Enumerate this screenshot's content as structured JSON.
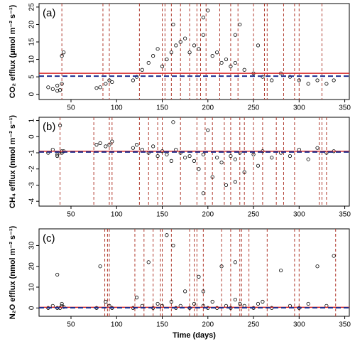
{
  "chart_data": [
    {
      "type": "scatter",
      "panel_label": "(a)",
      "y_label": "CO₂ efflux (μmol m⁻² s⁻¹)",
      "xlim": [
        15,
        355
      ],
      "xticks": [
        50,
        100,
        150,
        200,
        250,
        300,
        350
      ],
      "ylim": [
        -1.5,
        26
      ],
      "yticks": [
        0,
        5,
        10,
        15,
        20,
        25
      ],
      "point_color": "#000000",
      "vline_color": "#b03a2e",
      "mean_line": {
        "value": 6.0,
        "color": "#d62728"
      },
      "median_line": {
        "value": 5.2,
        "color": "#1f2f8f"
      },
      "vlines": [
        40,
        85,
        92,
        125,
        150,
        153,
        160,
        170,
        180,
        188,
        192,
        198,
        213,
        225,
        233,
        250,
        262,
        265,
        283,
        295,
        300,
        325
      ],
      "x": [
        25,
        30,
        35,
        40,
        42,
        38,
        78,
        82,
        88,
        92,
        95,
        118,
        122,
        128,
        135,
        140,
        145,
        150,
        155,
        160,
        165,
        170,
        175,
        180,
        185,
        190,
        195,
        200,
        205,
        210,
        215,
        220,
        225,
        230,
        235,
        240,
        250,
        260,
        270,
        280,
        290,
        300,
        310,
        320,
        330,
        338,
        162,
        195,
        230,
        255,
        35,
        40
      ],
      "values": [
        2,
        1.5,
        2.5,
        11,
        12,
        1.2,
        1.8,
        2,
        3,
        4,
        3.5,
        4,
        5,
        7,
        9,
        11,
        13,
        8,
        10,
        12,
        14,
        15,
        16,
        12,
        14,
        13,
        17,
        24,
        11,
        12,
        9,
        10,
        8,
        9,
        20,
        7,
        6,
        5,
        4,
        6,
        5,
        4,
        3,
        4,
        3,
        4,
        20,
        22,
        17,
        14,
        1,
        3
      ]
    },
    {
      "type": "scatter",
      "panel_label": "(b)",
      "y_label": "CH₄ efflux (nmol m⁻² s⁻¹)",
      "xlim": [
        15,
        355
      ],
      "xticks": [
        50,
        100,
        150,
        200,
        250,
        300,
        350
      ],
      "ylim": [
        -4.3,
        1.2
      ],
      "yticks": [
        -4,
        -3,
        -2,
        -1,
        0,
        1
      ],
      "point_color": "#000000",
      "vline_color": "#b03a2e",
      "mean_line": {
        "value": -0.9,
        "color": "#d62728"
      },
      "median_line": {
        "value": -0.95,
        "color": "#1f2f8f"
      },
      "vlines": [
        38,
        75,
        92,
        95,
        125,
        135,
        145,
        150,
        170,
        188,
        197,
        205,
        218,
        225,
        235,
        240,
        250,
        260,
        275,
        283,
        295,
        322,
        325,
        330
      ],
      "x": [
        25,
        30,
        35,
        40,
        42,
        38,
        78,
        82,
        88,
        92,
        95,
        118,
        122,
        128,
        135,
        140,
        145,
        150,
        155,
        160,
        165,
        170,
        175,
        180,
        185,
        190,
        195,
        200,
        205,
        210,
        215,
        220,
        225,
        230,
        235,
        240,
        250,
        260,
        270,
        280,
        290,
        300,
        310,
        320,
        330,
        338,
        162,
        195,
        230,
        255,
        35,
        40
      ],
      "values": [
        -1,
        -0.8,
        -1.2,
        -1,
        -0.9,
        0.7,
        -0.5,
        -0.4,
        -0.6,
        -0.5,
        -0.3,
        -0.7,
        -0.5,
        -0.8,
        -1,
        -0.6,
        -1.2,
        -0.9,
        -1.1,
        -1.5,
        -0.8,
        -1,
        -1.3,
        -1.2,
        -1.5,
        -2,
        -1.1,
        0.4,
        -2.5,
        -1.3,
        -1.6,
        -3,
        -1.2,
        -1.4,
        -1,
        -2.2,
        -1.1,
        -0.9,
        -1.3,
        -1,
        -1.2,
        -0.8,
        -1.4,
        -0.7,
        -1,
        -0.9,
        0.9,
        -3.5,
        -2.8,
        -1.8,
        -1.1,
        -0.9
      ]
    },
    {
      "type": "scatter",
      "panel_label": "(c)",
      "y_label": "N₂O efflux (nmol m⁻² s⁻¹)",
      "x_label": "Time (days)",
      "xlim": [
        15,
        355
      ],
      "xticks": [
        50,
        100,
        150,
        200,
        250,
        300,
        350
      ],
      "ylim": [
        -4,
        38
      ],
      "yticks": [
        0,
        10,
        20,
        30
      ],
      "point_color": "#000000",
      "vline_color": "#b03a2e",
      "mean_line": {
        "value": 0.3,
        "color": "#d62728"
      },
      "median_line": {
        "value": 0.1,
        "color": "#1f2f8f"
      },
      "vlines": [
        87,
        90,
        92,
        120,
        130,
        140,
        148,
        150,
        160,
        180,
        185,
        188,
        195,
        215,
        225,
        235,
        237,
        245,
        265,
        295,
        300,
        340
      ],
      "x": [
        25,
        30,
        35,
        40,
        42,
        38,
        78,
        82,
        88,
        92,
        95,
        118,
        122,
        128,
        135,
        140,
        145,
        150,
        155,
        160,
        165,
        170,
        175,
        180,
        185,
        190,
        195,
        200,
        205,
        210,
        215,
        220,
        225,
        230,
        235,
        240,
        250,
        260,
        270,
        280,
        290,
        300,
        310,
        320,
        330,
        338,
        162,
        195,
        230,
        255,
        35,
        40
      ],
      "values": [
        0,
        1,
        16,
        2,
        0.5,
        0,
        0,
        20,
        3,
        1,
        0,
        0,
        5,
        1,
        22,
        0,
        2,
        1,
        35,
        3,
        0,
        1,
        8,
        0,
        2,
        15,
        1,
        0,
        3,
        0,
        20,
        1,
        0,
        22,
        2,
        1,
        0,
        3,
        0,
        18,
        1,
        0,
        2,
        20,
        1,
        25,
        30,
        8,
        4,
        2,
        0,
        1
      ]
    }
  ]
}
